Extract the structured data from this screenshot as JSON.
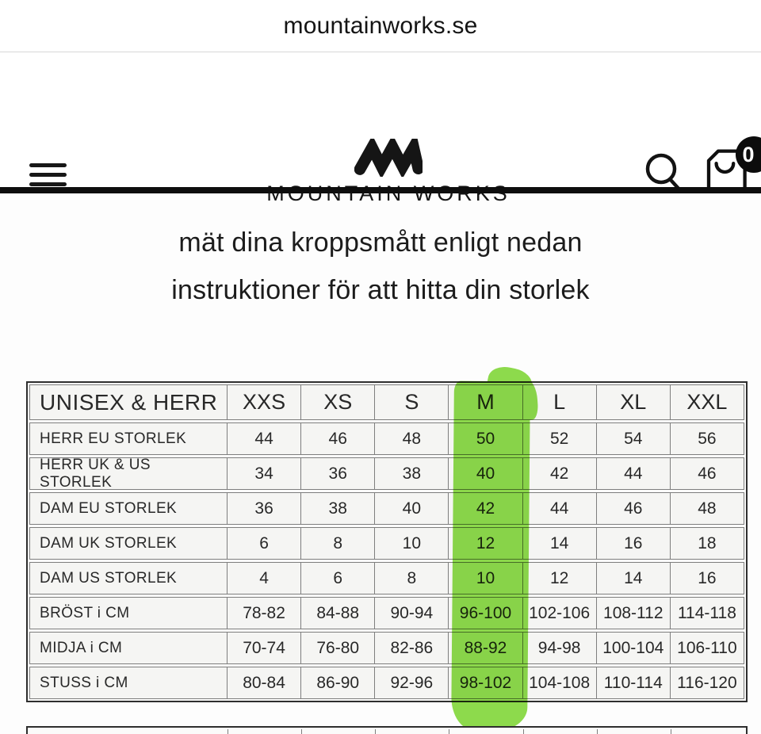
{
  "browser": {
    "site_label": "mountainworks.se"
  },
  "header": {
    "brand": "MOUNTAIN WORKS",
    "cart_count": "0",
    "icons": [
      "hamburger-icon",
      "mountain-zigzag-logo",
      "search-icon",
      "shopping-bag-icon"
    ]
  },
  "heading": {
    "line1": "mät dina kroppsmått enligt nedan",
    "line2": "instruktioner för att hitta din storlek"
  },
  "size_table": {
    "header": [
      "UNISEX & HERR",
      "XXS",
      "XS",
      "S",
      "M",
      "L",
      "XL",
      "XXL"
    ],
    "highlighted_column": "M",
    "rows": [
      {
        "label": "HERR EU STORLEK",
        "values": [
          "44",
          "46",
          "48",
          "50",
          "52",
          "54",
          "56"
        ]
      },
      {
        "label": "HERR UK & US STORLEK",
        "values": [
          "34",
          "36",
          "38",
          "40",
          "42",
          "44",
          "46"
        ]
      },
      {
        "label": "DAM EU STORLEK",
        "values": [
          "36",
          "38",
          "40",
          "42",
          "44",
          "46",
          "48"
        ]
      },
      {
        "label": "DAM UK STORLEK",
        "values": [
          "6",
          "8",
          "10",
          "12",
          "14",
          "16",
          "18"
        ]
      },
      {
        "label": "DAM US STORLEK",
        "values": [
          "4",
          "6",
          "8",
          "10",
          "12",
          "14",
          "16"
        ]
      },
      {
        "label": "BRÖST i CM",
        "values": [
          "78-82",
          "84-88",
          "90-94",
          "96-100",
          "102-106",
          "108-112",
          "114-118"
        ]
      },
      {
        "label": "MIDJA i CM",
        "values": [
          "70-74",
          "76-80",
          "82-86",
          "88-92",
          "94-98",
          "100-104",
          "106-110"
        ]
      },
      {
        "label": "STUSS i CM",
        "values": [
          "80-84",
          "86-90",
          "92-96",
          "98-102",
          "104-108",
          "110-114",
          "116-120"
        ]
      }
    ]
  },
  "colors": {
    "highlight_green": "#8edc4c",
    "accent_black": "#0e0e0e",
    "table_border_outer": "#2e2e2e",
    "table_border_inner": "#7e7e7e"
  }
}
